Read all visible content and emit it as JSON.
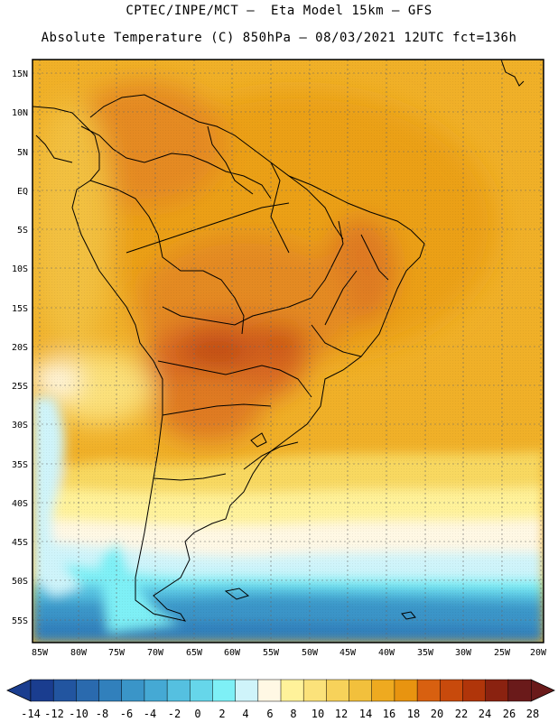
{
  "header": {
    "line1": "CPTEC/INPE/MCT –  Eta Model 15km – GFS",
    "line2": "Absolute Temperature (C) 850hPa – 08/03/2021 12UTC fct=136h"
  },
  "axes": {
    "lat_labels": [
      "15N",
      "10N",
      "5N",
      "EQ",
      "5S",
      "10S",
      "15S",
      "20S",
      "25S",
      "30S",
      "35S",
      "40S",
      "45S",
      "50S",
      "55S"
    ],
    "lon_labels": [
      "85W",
      "80W",
      "75W",
      "70W",
      "65W",
      "60W",
      "55W",
      "50W",
      "45W",
      "40W",
      "35W",
      "30W",
      "25W",
      "20W"
    ]
  },
  "colorbar": {
    "labels": [
      "-14",
      "-12",
      "-10",
      "-8",
      "-6",
      "-4",
      "-2",
      "0",
      "2",
      "4",
      "6",
      "8",
      "10",
      "12",
      "14",
      "16",
      "18",
      "20",
      "22",
      "24",
      "26",
      "28"
    ],
    "colors": [
      "#1a3d8f",
      "#2255a0",
      "#2a6aae",
      "#3180bc",
      "#3a95c8",
      "#45a9d4",
      "#55c0e0",
      "#66d6ea",
      "#7ef0f6",
      "#cff4fa",
      "#fff8e4",
      "#fff29a",
      "#fbe27a",
      "#f7d25a",
      "#f2c03c",
      "#eeaa20",
      "#e89410",
      "#d86010",
      "#c84a0c",
      "#b0350a",
      "#8a2210",
      "#6a1a1a"
    ]
  }
}
